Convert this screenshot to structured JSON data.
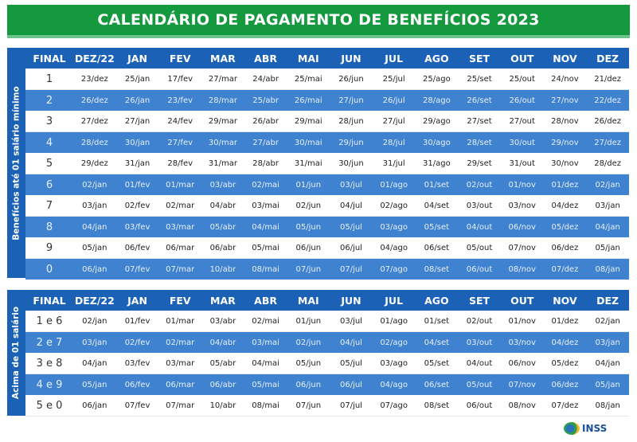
{
  "title": "CALENDÁRIO DE PAGAMENTO DE BENEFÍCIOS 2023",
  "colors": {
    "title_bg": "#15993f",
    "header_bg": "#1b61b5",
    "stripe_bg": "#3f82cf"
  },
  "headers": [
    "FINAL",
    "DEZ/22",
    "JAN",
    "FEV",
    "MAR",
    "ABR",
    "MAI",
    "JUN",
    "JUL",
    "AGO",
    "SET",
    "OUT",
    "NOV",
    "DEZ"
  ],
  "table1": {
    "side_label": "Benefícios até 01 salário mínimo",
    "rows": [
      [
        "1",
        "23/dez",
        "25/jan",
        "17/fev",
        "27/mar",
        "24/abr",
        "25/mai",
        "26/jun",
        "25/jul",
        "25/ago",
        "25/set",
        "25/out",
        "24/nov",
        "21/dez"
      ],
      [
        "2",
        "26/dez",
        "26/jan",
        "23/fev",
        "28/mar",
        "25/abr",
        "26/mai",
        "27/jun",
        "26/jul",
        "28/ago",
        "26/set",
        "26/out",
        "27/nov",
        "22/dez"
      ],
      [
        "3",
        "27/dez",
        "27/jan",
        "24/fev",
        "29/mar",
        "26/abr",
        "29/mai",
        "28/jun",
        "27/jul",
        "29/ago",
        "27/set",
        "27/out",
        "28/nov",
        "26/dez"
      ],
      [
        "4",
        "28/dez",
        "30/jan",
        "27/fev",
        "30/mar",
        "27/abr",
        "30/mai",
        "29/jun",
        "28/jul",
        "30/ago",
        "28/set",
        "30/out",
        "29/nov",
        "27/dez"
      ],
      [
        "5",
        "29/dez",
        "31/jan",
        "28/fev",
        "31/mar",
        "28/abr",
        "31/mai",
        "30/jun",
        "31/jul",
        "31/ago",
        "29/set",
        "31/out",
        "30/nov",
        "28/dez"
      ],
      [
        "6",
        "02/jan",
        "01/fev",
        "01/mar",
        "03/abr",
        "02/mai",
        "01/jun",
        "03/jul",
        "01/ago",
        "01/set",
        "02/out",
        "01/nov",
        "01/dez",
        "02/jan"
      ],
      [
        "7",
        "03/jan",
        "02/fev",
        "02/mar",
        "04/abr",
        "03/mai",
        "02/jun",
        "04/jul",
        "02/ago",
        "04/set",
        "03/out",
        "03/nov",
        "04/dez",
        "03/jan"
      ],
      [
        "8",
        "04/jan",
        "03/fev",
        "03/mar",
        "05/abr",
        "04/mai",
        "05/jun",
        "05/jul",
        "03/ago",
        "05/set",
        "04/out",
        "06/nov",
        "05/dez",
        "04/jan"
      ],
      [
        "9",
        "05/jan",
        "06/fev",
        "06/mar",
        "06/abr",
        "05/mai",
        "06/jun",
        "06/jul",
        "04/ago",
        "06/set",
        "05/out",
        "07/nov",
        "06/dez",
        "05/jan"
      ],
      [
        "0",
        "06/jan",
        "07/fev",
        "07/mar",
        "10/abr",
        "08/mai",
        "07/jun",
        "07/jul",
        "07/ago",
        "08/set",
        "06/out",
        "08/nov",
        "07/dez",
        "08/jan"
      ]
    ]
  },
  "table2": {
    "side_label": "Acima de 01 salário",
    "rows": [
      [
        "1 e 6",
        "02/jan",
        "01/fev",
        "01/mar",
        "03/abr",
        "02/mai",
        "01/jun",
        "03/jul",
        "01/ago",
        "01/set",
        "02/out",
        "01/nov",
        "01/dez",
        "02/jan"
      ],
      [
        "2 e 7",
        "03/jan",
        "02/fev",
        "02/mar",
        "04/abr",
        "03/mai",
        "02/jun",
        "04/jul",
        "02/ago",
        "04/set",
        "03/out",
        "03/nov",
        "04/dez",
        "03/jan"
      ],
      [
        "3 e 8",
        "04/jan",
        "03/fev",
        "03/mar",
        "05/abr",
        "04/mai",
        "05/jun",
        "05/jul",
        "03/ago",
        "05/set",
        "04/out",
        "06/nov",
        "05/dez",
        "04/jan"
      ],
      [
        "4 e 9",
        "05/jan",
        "06/fev",
        "06/mar",
        "06/abr",
        "05/mai",
        "06/jun",
        "06/jul",
        "04/ago",
        "06/set",
        "05/out",
        "07/nov",
        "06/dez",
        "05/jan"
      ],
      [
        "5 e 0",
        "06/jan",
        "07/fev",
        "07/mar",
        "10/abr",
        "08/mai",
        "07/jun",
        "07/jul",
        "07/ago",
        "08/set",
        "06/out",
        "08/nov",
        "07/dez",
        "08/jan"
      ]
    ]
  },
  "logo": {
    "text": "INSS"
  }
}
